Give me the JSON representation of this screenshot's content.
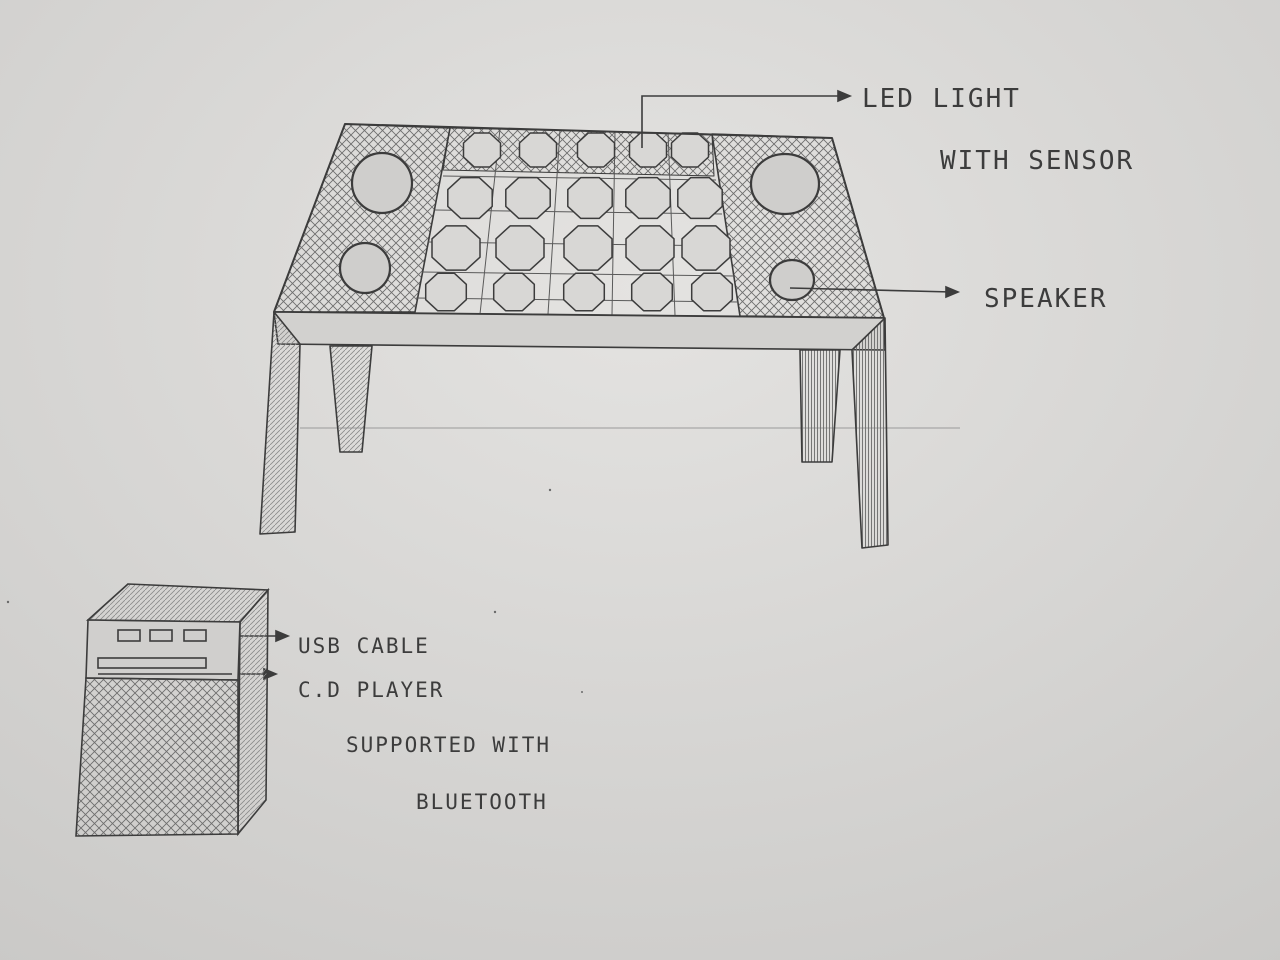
{
  "labels": {
    "led_light": "LED LIGHT",
    "with_sensor": "WITH SENSOR",
    "speaker": "SPEAKER",
    "usb_cable": "USB CABLE",
    "cd_player": "C.D PLAYER",
    "supported_with": "SUPPORTED WITH",
    "bluetooth": "BLUETOOTH"
  },
  "colors": {
    "paper": "#d6d5d3",
    "pencil": "#3c3c3c",
    "hatch": "#6e6e6e"
  }
}
